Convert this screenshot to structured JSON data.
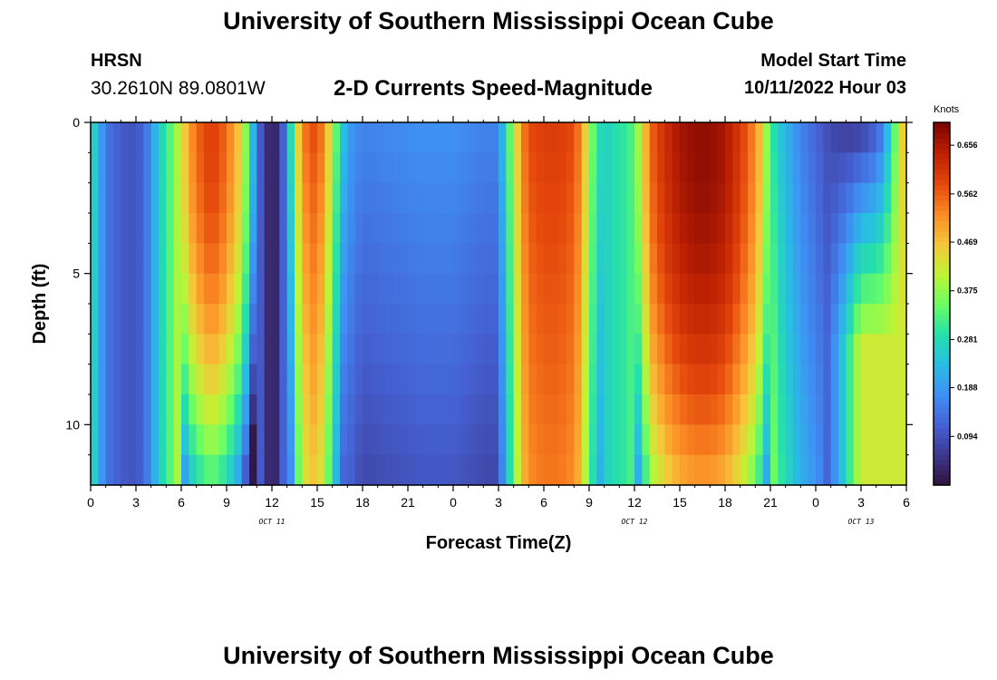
{
  "page": {
    "main_title": "University of Southern Mississippi Ocean Cube",
    "footer_title": "University of Southern Mississippi Ocean Cube",
    "station": "HRSN",
    "coords": "30.2610N  89.0801W",
    "subtitle": "2-D Currents Speed-Magnitude",
    "model_start_label": "Model Start Time",
    "model_start_value": "10/11/2022 Hour 03"
  },
  "colors": {
    "background": "#ffffff",
    "axis": "#000000",
    "colormap": [
      "#30123b",
      "#3e378f",
      "#4562d4",
      "#3f8ff4",
      "#29bde3",
      "#25e0aa",
      "#6dfd62",
      "#c1f334",
      "#f7c53a",
      "#fb8a24",
      "#e4460b",
      "#bc2002",
      "#7a0403"
    ]
  },
  "chart_data": {
    "type": "heatmap",
    "title": "2-D Currents Speed-Magnitude",
    "xlabel": "Forecast Time(Z)",
    "ylabel": "Depth (ft)",
    "x_tick_labels": [
      "0",
      "3",
      "6",
      "9",
      "12",
      "15",
      "18",
      "21",
      "0",
      "3",
      "6",
      "9",
      "12",
      "15",
      "18",
      "21",
      "0",
      "3",
      "6"
    ],
    "x_hours": [
      0,
      3,
      6,
      9,
      12,
      15,
      18,
      21,
      24,
      27,
      30,
      33,
      36,
      39,
      42,
      45,
      48,
      51,
      54
    ],
    "x_range_hours": [
      0,
      54
    ],
    "date_labels": [
      {
        "text": "OCT 11",
        "hour": 12
      },
      {
        "text": "OCT 12",
        "hour": 36
      },
      {
        "text": "OCT 13",
        "hour": 51
      }
    ],
    "y_range_ft": [
      0,
      12
    ],
    "y_tick_values": [
      0,
      5,
      10
    ],
    "y_tick_labels": [
      "0",
      "5",
      "10"
    ],
    "colorbar": {
      "unit": "Knots",
      "range": [
        0,
        0.7
      ],
      "tick_values": [
        0.094,
        0.188,
        0.281,
        0.375,
        0.469,
        0.562,
        0.656
      ],
      "tick_labels": [
        "0.094",
        "0.188",
        "0.281",
        "0.375",
        "0.469",
        "0.562",
        "0.656"
      ]
    },
    "time_step_hours": 0.5,
    "depth_bins_ft": [
      0.5,
      1.5,
      2.5,
      3.5,
      4.5,
      5.5,
      6.5,
      7.5,
      8.5,
      9.5,
      10.5,
      11.5
    ],
    "speed_profile_surface_knots": [
      [
        0,
        0.3
      ],
      [
        0.5,
        0.22
      ],
      [
        1,
        0.15
      ],
      [
        1.5,
        0.12
      ],
      [
        2,
        0.11
      ],
      [
        2.5,
        0.1
      ],
      [
        3,
        0.1
      ],
      [
        3.5,
        0.12
      ],
      [
        4,
        0.18
      ],
      [
        4.5,
        0.26
      ],
      [
        5,
        0.3
      ],
      [
        5.5,
        0.36
      ],
      [
        6,
        0.42
      ],
      [
        6.5,
        0.5
      ],
      [
        7,
        0.55
      ],
      [
        7.5,
        0.58
      ],
      [
        8,
        0.6
      ],
      [
        8.5,
        0.58
      ],
      [
        9,
        0.55
      ],
      [
        9.5,
        0.5
      ],
      [
        10,
        0.44
      ],
      [
        10.5,
        0.3
      ],
      [
        11,
        0.15
      ],
      [
        11.5,
        0.06
      ],
      [
        12,
        0.02
      ],
      [
        12.5,
        0.05
      ],
      [
        13,
        0.18
      ],
      [
        13.5,
        0.4
      ],
      [
        14,
        0.52
      ],
      [
        14.5,
        0.58
      ],
      [
        15,
        0.58
      ],
      [
        15.5,
        0.52
      ],
      [
        16,
        0.4
      ],
      [
        16.5,
        0.28
      ],
      [
        17,
        0.2
      ],
      [
        18,
        0.16
      ],
      [
        20,
        0.17
      ],
      [
        22,
        0.18
      ],
      [
        24,
        0.18
      ],
      [
        26,
        0.16
      ],
      [
        27,
        0.16
      ],
      [
        27.5,
        0.28
      ],
      [
        28,
        0.4
      ],
      [
        28.5,
        0.52
      ],
      [
        29,
        0.58
      ],
      [
        30,
        0.6
      ],
      [
        31,
        0.6
      ],
      [
        32,
        0.58
      ],
      [
        32.5,
        0.52
      ],
      [
        33,
        0.4
      ],
      [
        33.5,
        0.3
      ],
      [
        34,
        0.26
      ],
      [
        34.5,
        0.28
      ],
      [
        35,
        0.3
      ],
      [
        35.5,
        0.3
      ],
      [
        36,
        0.34
      ],
      [
        36.5,
        0.42
      ],
      [
        37,
        0.55
      ],
      [
        38,
        0.62
      ],
      [
        39,
        0.66
      ],
      [
        40,
        0.68
      ],
      [
        41,
        0.68
      ],
      [
        42,
        0.66
      ],
      [
        43,
        0.6
      ],
      [
        44,
        0.52
      ],
      [
        44.5,
        0.44
      ],
      [
        45,
        0.32
      ],
      [
        45.5,
        0.26
      ],
      [
        46,
        0.22
      ],
      [
        47,
        0.16
      ],
      [
        48,
        0.12
      ],
      [
        49,
        0.08
      ],
      [
        50,
        0.06
      ],
      [
        51,
        0.06
      ],
      [
        52,
        0.1
      ],
      [
        52.5,
        0.16
      ],
      [
        53,
        0.28
      ],
      [
        53.5,
        0.4
      ],
      [
        54,
        0.5
      ]
    ]
  }
}
